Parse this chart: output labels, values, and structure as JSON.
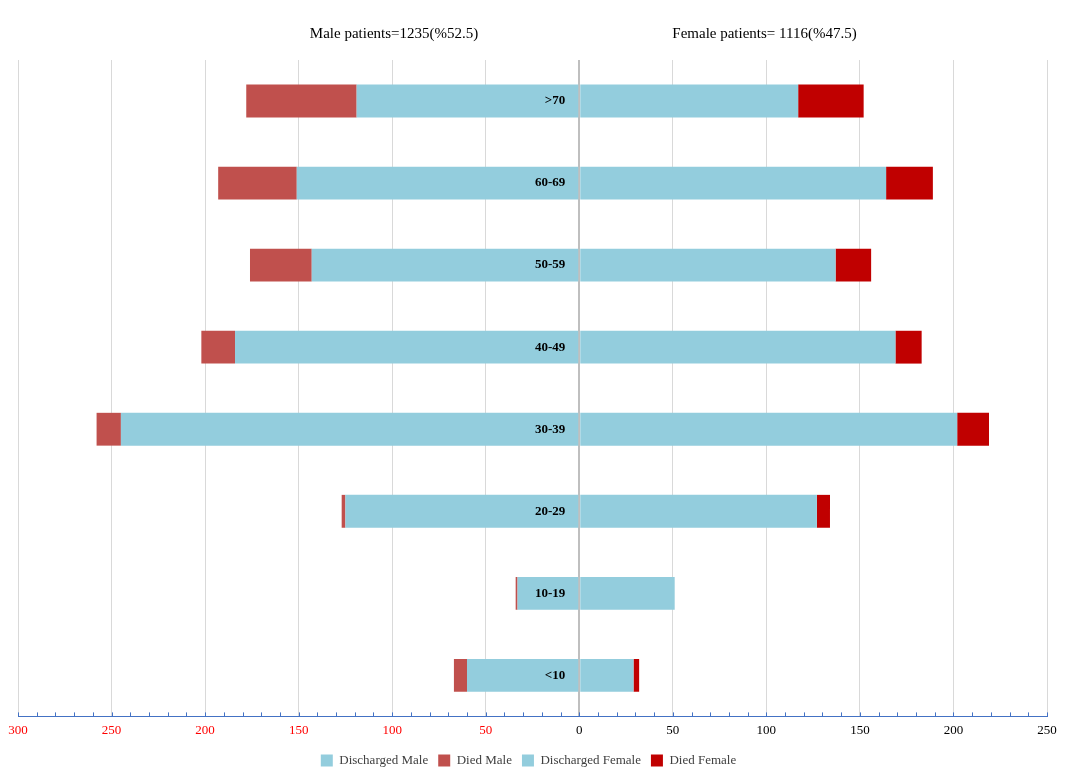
{
  "chart_data": {
    "type": "bar",
    "orientation": "horizontal",
    "stacked": true,
    "categories": [
      ">70",
      "60-69",
      "50-59",
      "40-49",
      "30-39",
      "20-29",
      "10-19",
      "<10"
    ],
    "series": [
      {
        "name": "Discharged Male",
        "color": "#93cddd",
        "values": [
          -119,
          -151,
          -143,
          -184,
          -245,
          -125,
          -33,
          -60
        ]
      },
      {
        "name": "Died Male",
        "color": "#c0504d",
        "values": [
          -59,
          -42,
          -33,
          -18,
          -13,
          -2,
          -1,
          -7
        ]
      },
      {
        "name": "Discharged Female",
        "color": "#93cddd",
        "values": [
          117,
          164,
          137,
          169,
          202,
          127,
          51,
          29
        ]
      },
      {
        "name": "Died Female",
        "color": "#c00000",
        "values": [
          35,
          25,
          19,
          14,
          17,
          7,
          0,
          3
        ]
      }
    ],
    "xlim": [
      -300,
      250
    ],
    "xticks": [
      {
        "value": -300,
        "label": "300"
      },
      {
        "value": -250,
        "label": "250"
      },
      {
        "value": -200,
        "label": "200"
      },
      {
        "value": -150,
        "label": "150"
      },
      {
        "value": -100,
        "label": "100"
      },
      {
        "value": -50,
        "label": "50"
      },
      0,
      50,
      100,
      150,
      200,
      250
    ],
    "annotations": [
      "Male patients=1235(%52.5)",
      "Female patients= 1116(%47.5)"
    ],
    "grid": "x",
    "legend": "bottom"
  }
}
